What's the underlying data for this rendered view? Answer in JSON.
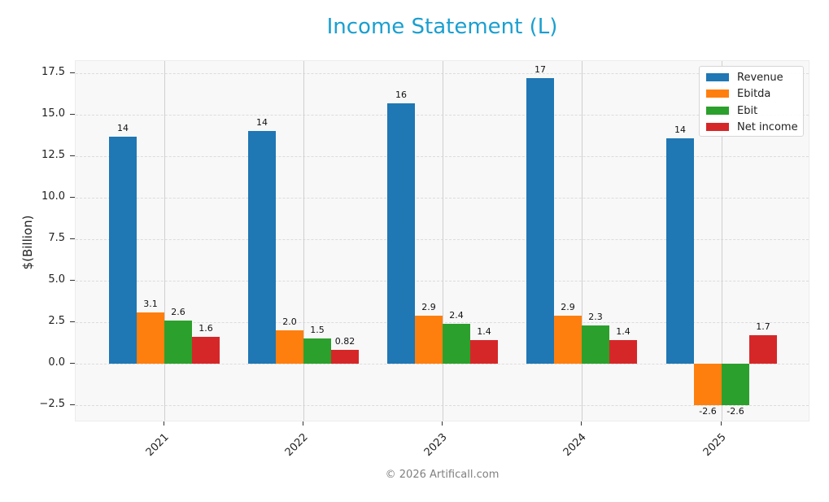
{
  "title": "Income Statement (L)",
  "footer": "© 2026 Artificall.com",
  "colors": {
    "title": "#1a9fd0",
    "Revenue": "#1f77b4",
    "Ebitda": "#ff7f0e",
    "Ebit": "#2ca02c",
    "Net income": "#d62728"
  },
  "chart_data": {
    "type": "bar",
    "title": "Income Statement (L)",
    "xlabel": "",
    "ylabel": "$(Billion)",
    "categories": [
      "2021",
      "2022",
      "2023",
      "2024",
      "2025"
    ],
    "series": [
      {
        "name": "Revenue",
        "values": [
          13.7,
          14.0,
          15.7,
          17.2,
          13.6
        ],
        "labels": [
          "14",
          "14",
          "16",
          "17",
          "14"
        ]
      },
      {
        "name": "Ebitda",
        "values": [
          3.1,
          2.0,
          2.9,
          2.9,
          -2.6
        ],
        "labels": [
          "3.1",
          "2.0",
          "2.9",
          "2.9",
          "-2.6"
        ]
      },
      {
        "name": "Ebit",
        "values": [
          2.6,
          1.5,
          2.4,
          2.3,
          -2.6
        ],
        "labels": [
          "2.6",
          "1.5",
          "2.4",
          "2.3",
          "-2.6"
        ]
      },
      {
        "name": "Net income",
        "values": [
          1.6,
          0.82,
          1.4,
          1.4,
          1.7
        ],
        "labels": [
          "1.6",
          "0.82",
          "1.4",
          "1.4",
          "1.7"
        ]
      }
    ],
    "yticks": [
      "−2.5",
      "0.0",
      "2.5",
      "5.0",
      "7.5",
      "10.0",
      "12.5",
      "15.0",
      "17.5"
    ],
    "ytick_values": [
      -2.5,
      0,
      2.5,
      5.0,
      7.5,
      10.0,
      12.5,
      15.0,
      17.5
    ],
    "ylim": [
      -3.5,
      18.2
    ],
    "grid": true,
    "legend_position": "upper right"
  },
  "legend": {
    "items": [
      "Revenue",
      "Ebitda",
      "Ebit",
      "Net income"
    ]
  }
}
